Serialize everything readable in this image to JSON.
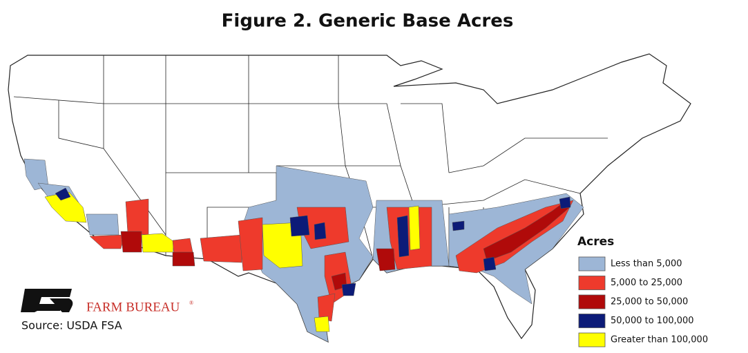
{
  "title": "Figure 2. Generic Base Acres",
  "legend": {
    "title": "Acres",
    "items": [
      {
        "label": "Less than 5,000",
        "color": "#9db6d6"
      },
      {
        "label": "5,000 to 25,000",
        "color": "#ee3a2c"
      },
      {
        "label": "25,000 to 50,000",
        "color": "#b00a0a"
      },
      {
        "label": "50,000 to 100,000",
        "color": "#0c1b78"
      },
      {
        "label": "Greater than 100,000",
        "color": "#ffff00"
      }
    ]
  },
  "logo": {
    "name": "FARM BUREAU",
    "mark": "®"
  },
  "source": "Source: USDA FSA"
}
